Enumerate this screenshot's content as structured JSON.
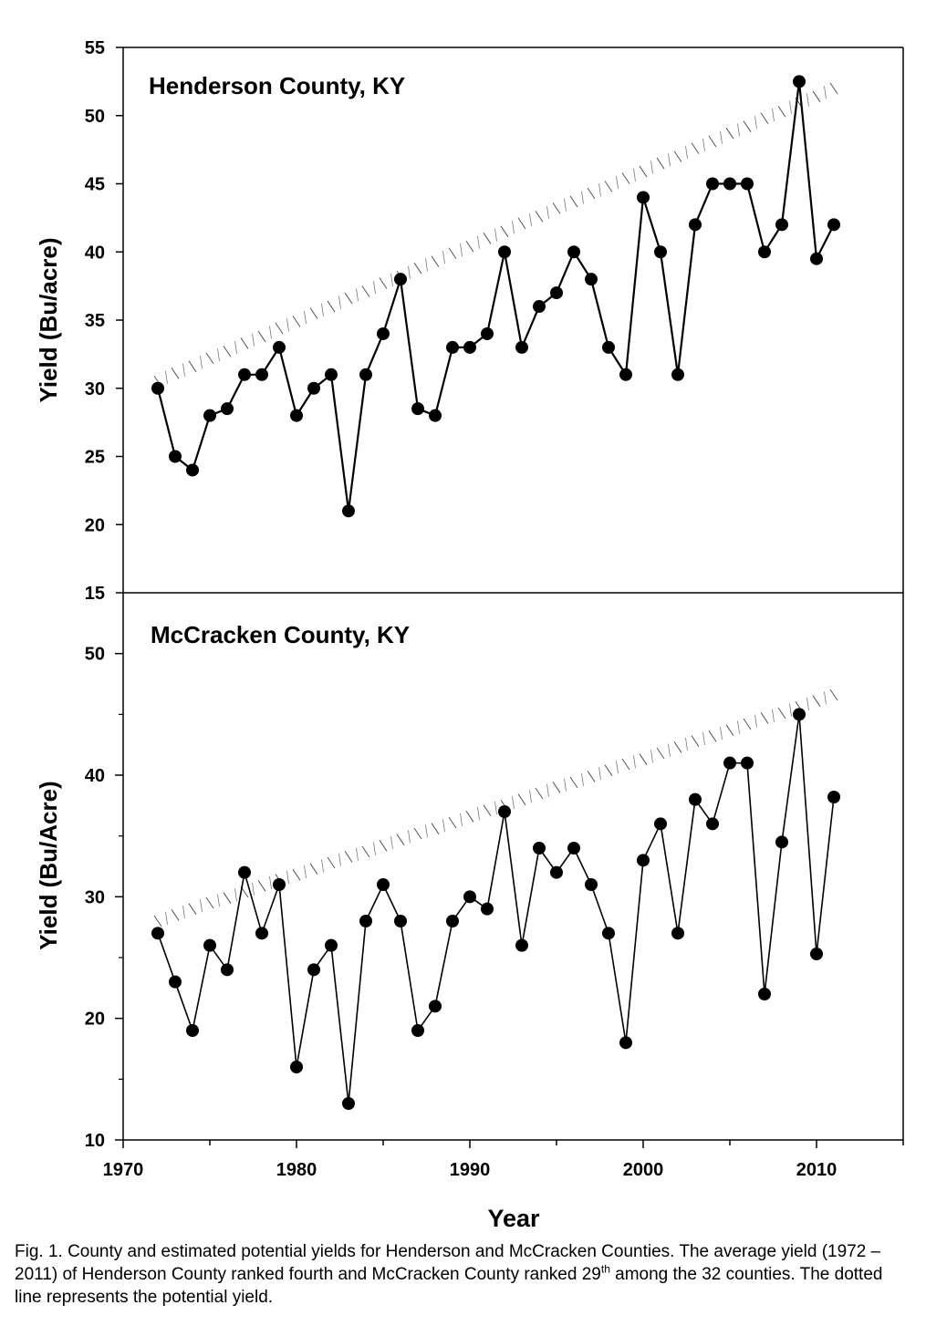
{
  "charts": [
    {
      "type": "line",
      "title": "Henderson County, KY",
      "ylabel": "Yield (Bu/acre)",
      "ylim": [
        15,
        55
      ],
      "yticks": [
        "15",
        "20",
        "25",
        "30",
        "35",
        "40",
        "45",
        "50",
        "55"
      ],
      "x": [
        1972,
        1973,
        1974,
        1975,
        1976,
        1977,
        1978,
        1979,
        1980,
        1981,
        1982,
        1983,
        1984,
        1985,
        1986,
        1987,
        1988,
        1989,
        1990,
        1991,
        1992,
        1993,
        1994,
        1995,
        1996,
        1997,
        1998,
        1999,
        2000,
        2001,
        2002,
        2003,
        2004,
        2005,
        2006,
        2007,
        2008,
        2009,
        2010,
        2011
      ],
      "series": [
        {
          "style": "solid-with-circle-markers",
          "values": [
            30,
            25,
            24,
            28,
            28.5,
            31,
            31,
            33,
            28,
            30,
            31,
            21,
            31,
            34,
            38,
            28.5,
            28,
            33,
            33,
            34,
            40,
            33,
            36,
            37,
            40,
            38,
            33,
            31,
            44,
            40,
            31,
            42,
            45,
            45,
            45,
            40,
            42,
            52.5,
            39.5,
            42
          ]
        },
        {
          "style": "dotted",
          "values": [
            30.5,
            31.1,
            31.6,
            32.2,
            32.7,
            33.3,
            33.8,
            34.4,
            34.9,
            35.5,
            36.0,
            36.6,
            37.1,
            37.7,
            38.2,
            38.8,
            39.3,
            39.9,
            40.4,
            41.0,
            41.5,
            42.1,
            42.6,
            43.2,
            43.7,
            44.3,
            44.8,
            45.4,
            45.9,
            46.5,
            47.0,
            47.6,
            48.1,
            48.7,
            49.2,
            49.8,
            50.3,
            50.9,
            51.4,
            52.0
          ]
        }
      ]
    },
    {
      "type": "line",
      "title": "McCracken County, KY",
      "ylabel": "Yield (Bu/Acre)",
      "ylim": [
        10,
        55
      ],
      "yticks": [
        "10",
        "20",
        "30",
        "40",
        "50"
      ],
      "x": [
        1972,
        1973,
        1974,
        1975,
        1976,
        1977,
        1978,
        1979,
        1980,
        1981,
        1982,
        1983,
        1984,
        1985,
        1986,
        1987,
        1988,
        1989,
        1990,
        1991,
        1992,
        1993,
        1994,
        1995,
        1996,
        1997,
        1998,
        1999,
        2000,
        2001,
        2002,
        2003,
        2004,
        2005,
        2006,
        2007,
        2008,
        2009,
        2010,
        2011
      ],
      "series": [
        {
          "style": "solid-with-circle-markers",
          "values": [
            27,
            23,
            19,
            26,
            24,
            32,
            27,
            31,
            16,
            24,
            26,
            13,
            28,
            31,
            28,
            19,
            21,
            28,
            30,
            29,
            37,
            26,
            34,
            32,
            34,
            31,
            27,
            18,
            33,
            36,
            27,
            38,
            36,
            41,
            41,
            22,
            34.5,
            45,
            25.3,
            38.2
          ]
        },
        {
          "style": "dotted",
          "values": [
            28.0,
            28.5,
            29.0,
            29.5,
            29.9,
            30.4,
            30.9,
            31.4,
            31.8,
            32.3,
            32.8,
            33.3,
            33.7,
            34.2,
            34.7,
            35.2,
            35.6,
            36.1,
            36.6,
            37.1,
            37.5,
            38.0,
            38.5,
            39.0,
            39.4,
            39.9,
            40.4,
            40.9,
            41.3,
            41.8,
            42.3,
            42.8,
            43.2,
            43.7,
            44.2,
            44.7,
            45.1,
            45.6,
            46.1,
            46.6
          ]
        }
      ]
    }
  ],
  "x_axis": {
    "label": "Year",
    "xlim": [
      1970,
      2015
    ],
    "ticks": [
      "1970",
      "1980",
      "1990",
      "2000",
      "2010"
    ]
  },
  "caption": {
    "part1": "Fig. 1. County and estimated potential yields for Henderson and McCracken Counties. The average yield (1972 – 2011) of Henderson County ranked fourth and McCracken County ranked 29",
    "sup": "th",
    "part2": " among the 32 counties. The dotted line represents the potential yield."
  }
}
